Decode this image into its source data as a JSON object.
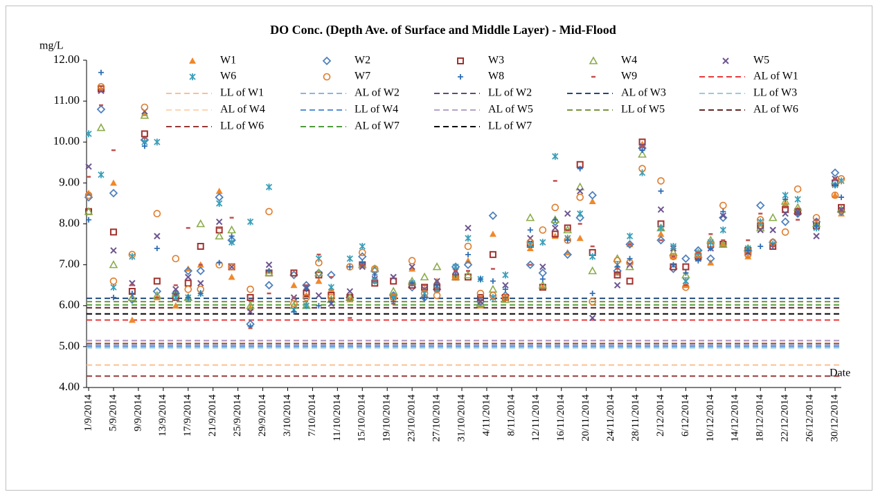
{
  "chart_data": {
    "type": "scatter",
    "title": "DO Conc. (Depth Ave. of Surface and Middle Layer) - Mid-Flood",
    "y_axis_label": "mg/L",
    "x_axis_label": "Date",
    "x": [
      "1/9/2014",
      "3/9/2014",
      "5/9/2014",
      "8/9/2014",
      "10/9/2014",
      "12/9/2014",
      "15/9/2014",
      "17/9/2014",
      "19/9/2014",
      "22/9/2014",
      "24/9/2014",
      "27/9/2014",
      "30/9/2014",
      "4/10/2014",
      "6/10/2014",
      "8/10/2014",
      "10/10/2014",
      "13/10/2014",
      "15/10/2014",
      "17/10/2014",
      "20/10/2014",
      "23/10/2014",
      "25/10/2014",
      "27/10/2014",
      "30/10/2014",
      "1/11/2014",
      "3/11/2014",
      "5/11/2014",
      "7/11/2014",
      "11/11/2014",
      "13/11/2014",
      "15/11/2014",
      "17/11/2014",
      "19/11/2014",
      "21/11/2014",
      "25/11/2014",
      "27/11/2014",
      "29/11/2014",
      "2/12/2014",
      "4/12/2014",
      "6/12/2014",
      "8/12/2014",
      "10/12/2014",
      "12/12/2014",
      "16/12/2014",
      "18/12/2014",
      "20/12/2014",
      "22/12/2014",
      "24/12/2014",
      "27/12/2014",
      "30/12/2014",
      "31/12/2014"
    ],
    "xlim": [
      "1/9/2014",
      "31/12/2014"
    ],
    "xticks": [
      "1/9/2014",
      "5/9/2014",
      "9/9/2014",
      "13/9/2014",
      "17/9/2014",
      "21/9/2014",
      "25/9/2014",
      "29/9/2014",
      "3/10/2014",
      "7/10/2014",
      "11/10/2014",
      "15/10/2014",
      "19/10/2014",
      "23/10/2014",
      "27/10/2014",
      "31/10/2014",
      "4/11/2014",
      "8/11/2014",
      "12/11/2014",
      "16/11/2014",
      "20/11/2014",
      "24/11/2014",
      "28/11/2014",
      "2/12/2014",
      "6/12/2014",
      "10/12/2014",
      "14/12/2014",
      "18/12/2014",
      "22/12/2014",
      "26/12/2014",
      "30/12/2014"
    ],
    "ylim": [
      4,
      12
    ],
    "yticks": [
      {
        "value": 4,
        "label": "4.00"
      },
      {
        "value": 5,
        "label": "5.00"
      },
      {
        "value": 6,
        "label": "6.00"
      },
      {
        "value": 7,
        "label": "7.00"
      },
      {
        "value": 8,
        "label": "8.00"
      },
      {
        "value": 9,
        "label": "9.00"
      },
      {
        "value": 10,
        "label": "10.00"
      },
      {
        "value": 11,
        "label": "11.00"
      },
      {
        "value": 12,
        "label": "12.00"
      }
    ],
    "grid": false,
    "series": [
      {
        "name": "W1",
        "color": "#f0882a",
        "marker": "triangle",
        "values": [
          8.75,
          11.3,
          9.0,
          5.65,
          10.7,
          6.2,
          6.0,
          6.9,
          7.0,
          8.8,
          6.7,
          5.95,
          6.85,
          6.5,
          6.25,
          6.6,
          6.4,
          6.15,
          7.0,
          6.6,
          6.25,
          6.9,
          6.4,
          6.6,
          6.7,
          7.1,
          6.0,
          7.75,
          6.2,
          7.4,
          6.45,
          7.7,
          7.3,
          7.65,
          8.55,
          6.8,
          7.5,
          9.95,
          7.75,
          7.2,
          6.5,
          7.2,
          7.05,
          7.5,
          7.2,
          8.0,
          7.5,
          8.5,
          8.35,
          8.0,
          8.7,
          8.25
        ]
      },
      {
        "name": "W2",
        "color": "#4f81bd",
        "marker": "diamond",
        "values": [
          8.65,
          10.8,
          8.75,
          6.15,
          10.05,
          6.35,
          6.3,
          6.85,
          6.85,
          8.65,
          7.6,
          5.55,
          6.5,
          6.75,
          6.5,
          6.8,
          6.75,
          6.2,
          7.2,
          6.85,
          6.25,
          6.45,
          6.2,
          6.4,
          6.95,
          7.0,
          6.1,
          8.2,
          6.25,
          7.0,
          6.8,
          8.05,
          7.25,
          8.15,
          8.7,
          6.85,
          7.5,
          9.85,
          7.6,
          6.9,
          7.15,
          7.35,
          7.15,
          8.15,
          7.35,
          8.45,
          7.55,
          8.05,
          8.25,
          8.05,
          9.25,
          8.3
        ]
      },
      {
        "name": "W3",
        "color": "#a0302d",
        "marker": "square",
        "values": [
          8.3,
          11.3,
          7.8,
          6.35,
          10.2,
          6.6,
          6.2,
          6.55,
          7.45,
          7.85,
          6.95,
          6.2,
          6.8,
          6.8,
          6.3,
          6.75,
          6.25,
          6.2,
          7.0,
          6.55,
          6.6,
          6.5,
          6.45,
          6.45,
          6.7,
          6.7,
          6.2,
          7.25,
          6.2,
          7.5,
          6.45,
          7.75,
          7.9,
          9.45,
          7.3,
          6.75,
          6.6,
          10.0,
          8.0,
          6.95,
          6.95,
          7.2,
          7.5,
          7.5,
          7.35,
          7.95,
          7.45,
          8.35,
          8.3,
          7.95,
          9.0,
          8.4
        ]
      },
      {
        "name": "W4",
        "color": "#8aab4a",
        "marker": "triangle-open",
        "values": [
          8.3,
          10.35,
          7.0,
          6.2,
          10.65,
          6.25,
          6.3,
          6.2,
          8.0,
          7.7,
          7.85,
          6.0,
          6.8,
          6.0,
          6.0,
          6.8,
          6.15,
          6.2,
          7.0,
          6.9,
          6.35,
          6.6,
          6.7,
          6.95,
          6.7,
          6.75,
          6.05,
          6.4,
          6.15,
          8.15,
          6.5,
          8.1,
          7.85,
          8.9,
          6.85,
          7.15,
          6.95,
          9.7,
          7.9,
          7.3,
          6.75,
          7.25,
          7.6,
          7.5,
          7.4,
          7.9,
          8.15,
          8.55,
          8.4,
          8.0,
          9.05,
          8.35
        ]
      },
      {
        "name": "W5",
        "color": "#6d5590",
        "marker": "x",
        "values": [
          9.4,
          11.25,
          7.35,
          6.55,
          10.75,
          7.7,
          6.4,
          6.7,
          6.55,
          8.05,
          6.95,
          5.85,
          7.0,
          6.2,
          6.45,
          6.25,
          6.05,
          6.35,
          6.95,
          6.65,
          6.7,
          6.95,
          6.4,
          6.6,
          6.85,
          7.9,
          6.1,
          6.2,
          6.5,
          7.65,
          6.95,
          7.9,
          8.25,
          8.8,
          5.7,
          6.5,
          7.0,
          9.9,
          8.35,
          7.4,
          6.6,
          7.15,
          7.4,
          8.2,
          7.3,
          7.85,
          7.85,
          8.25,
          8.3,
          7.7,
          9.1,
          8.35
        ]
      },
      {
        "name": "W6",
        "color": "#3a9fb8",
        "marker": "asterisk",
        "values": [
          10.2,
          9.2,
          6.45,
          7.2,
          10.0,
          10.0,
          6.2,
          6.2,
          6.3,
          8.5,
          7.55,
          8.05,
          8.9,
          5.9,
          6.0,
          7.15,
          6.45,
          7.15,
          7.45,
          6.6,
          6.2,
          6.55,
          6.3,
          6.4,
          6.95,
          7.65,
          6.65,
          6.2,
          6.75,
          7.5,
          7.55,
          9.65,
          7.65,
          8.25,
          7.2,
          7.0,
          7.7,
          9.25,
          7.9,
          7.45,
          6.6,
          7.3,
          7.55,
          7.85,
          7.4,
          8.05,
          7.5,
          8.7,
          8.6,
          7.9,
          8.95,
          9.05
        ]
      },
      {
        "name": "W7",
        "color": "#e07b2a",
        "marker": "circle",
        "values": [
          8.7,
          11.35,
          6.6,
          7.25,
          10.85,
          8.25,
          7.15,
          6.4,
          6.4,
          7.0,
          6.95,
          6.4,
          8.3,
          6.05,
          6.2,
          7.05,
          6.2,
          6.95,
          7.3,
          6.9,
          6.2,
          7.1,
          6.3,
          6.25,
          6.7,
          7.45,
          6.3,
          6.25,
          6.2,
          7.55,
          7.85,
          8.4,
          7.6,
          8.65,
          6.1,
          7.1,
          7.05,
          9.35,
          9.05,
          7.2,
          6.45,
          7.25,
          7.5,
          8.45,
          7.25,
          8.1,
          7.55,
          7.8,
          8.85,
          8.15,
          8.7,
          9.1
        ]
      },
      {
        "name": "W8",
        "color": "#2e6db4",
        "marker": "plus",
        "values": [
          8.1,
          11.7,
          6.2,
          6.3,
          9.9,
          7.4,
          6.3,
          6.2,
          6.3,
          7.05,
          7.7,
          5.5,
          6.85,
          5.85,
          6.4,
          6.0,
          6.1,
          6.95,
          7.05,
          6.75,
          6.1,
          6.55,
          6.2,
          6.5,
          6.75,
          7.25,
          6.65,
          6.6,
          6.4,
          7.85,
          6.65,
          8.1,
          7.6,
          9.35,
          6.3,
          6.95,
          7.15,
          9.8,
          8.8,
          7.0,
          6.8,
          7.1,
          7.4,
          8.3,
          7.35,
          7.45,
          7.45,
          8.6,
          8.25,
          7.95,
          8.95,
          8.65
        ]
      },
      {
        "name": "W9",
        "color": "#c0504d",
        "marker": "dash",
        "values": [
          9.15,
          10.9,
          9.8,
          6.5,
          10.1,
          6.2,
          6.5,
          7.9,
          7.0,
          7.9,
          8.15,
          5.45,
          6.3,
          6.2,
          6.5,
          7.25,
          6.7,
          5.7,
          7.0,
          6.6,
          6.05,
          6.5,
          6.5,
          6.4,
          6.85,
          6.85,
          6.2,
          6.9,
          6.2,
          7.0,
          6.4,
          9.05,
          7.85,
          8.0,
          7.45,
          6.9,
          7.5,
          9.9,
          7.6,
          7.2,
          6.5,
          7.3,
          7.75,
          7.6,
          7.6,
          8.25,
          7.45,
          8.4,
          8.1,
          8.1,
          9.1,
          8.3
        ]
      }
    ],
    "reference_lines": [
      {
        "name": "AL of W1",
        "color": "#e8383a",
        "value": 5.65
      },
      {
        "name": "LL of W1",
        "color": "#fac090",
        "value": 4.55
      },
      {
        "name": "AL of W2",
        "color": "#8db4e2",
        "value": 5.0
      },
      {
        "name": "LL of W2",
        "color": "#604a7b",
        "value": 5.07
      },
      {
        "name": "AL of W3",
        "color": "#1f497d",
        "value": 6.18
      },
      {
        "name": "LL of W3",
        "color": "#93cddd",
        "value": 4.97
      },
      {
        "name": "AL of W4",
        "color": "#fcd5b4",
        "value": 5.11
      },
      {
        "name": "LL of W4",
        "color": "#558ed5",
        "value": 5.02
      },
      {
        "name": "AL of W5",
        "color": "#b3a2c7",
        "value": 5.15
      },
      {
        "name": "LL of W5",
        "color": "#77933c",
        "value": 6.1
      },
      {
        "name": "AL of W6",
        "color": "#632523",
        "value": 5.95
      },
      {
        "name": "LL of W6",
        "color": "#953735",
        "value": 4.28
      },
      {
        "name": "AL of W7",
        "color": "#4e9a3a",
        "value": 6.02
      },
      {
        "name": "LL of W7",
        "color": "#000000",
        "value": 5.8
      }
    ]
  }
}
